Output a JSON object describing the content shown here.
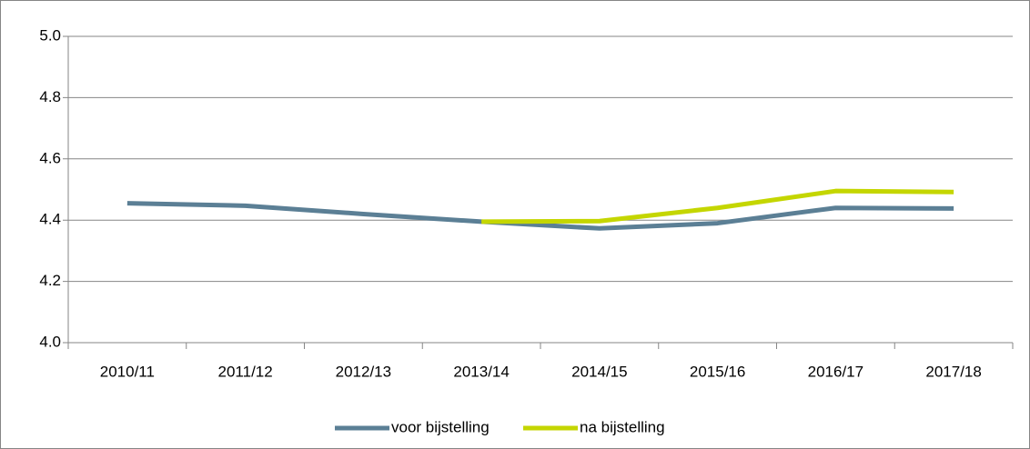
{
  "chart_data": {
    "type": "line",
    "categories": [
      "2010/11",
      "2011/12",
      "2012/13",
      "2013/14",
      "2014/15",
      "2015/16",
      "2016/17",
      "2017/18"
    ],
    "series": [
      {
        "name": "voor bijstelling",
        "color": "#5b7f95",
        "values": [
          4.455,
          4.447,
          4.42,
          4.395,
          4.373,
          4.39,
          4.44,
          4.438
        ]
      },
      {
        "name": "na bijstelling",
        "color": "#c4d600",
        "values": [
          null,
          null,
          null,
          4.395,
          4.397,
          4.44,
          4.495,
          4.492
        ]
      }
    ],
    "ylim": [
      4.0,
      5.0
    ],
    "yticks": [
      {
        "value": 4.0,
        "label": "4.0"
      },
      4.2,
      4.4,
      4.6,
      4.8,
      {
        "value": 5.0,
        "label": "5.0"
      }
    ],
    "grid": true,
    "legend": "bottom"
  }
}
